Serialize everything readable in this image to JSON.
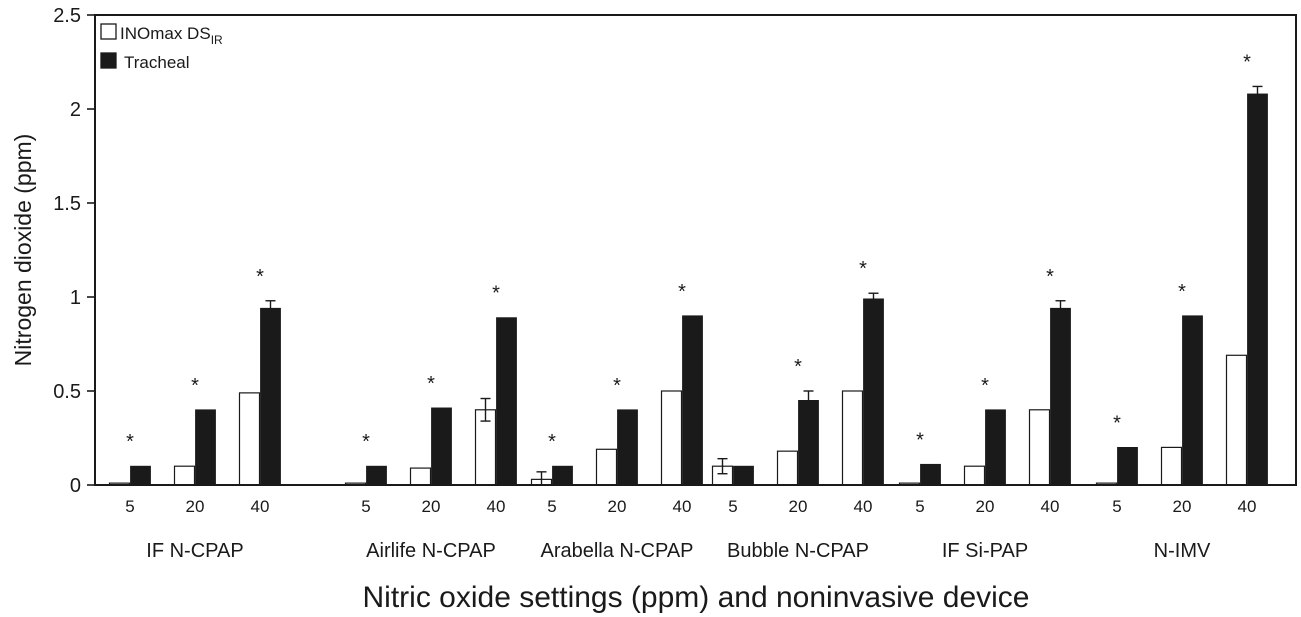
{
  "chart_data": {
    "type": "bar",
    "ylabel": "Nitrogen dioxide (ppm)",
    "xlabel": "Nitric oxide settings (ppm) and noninvasive device",
    "ylim": [
      0,
      2.5
    ],
    "yticks": [
      0,
      0.5,
      1,
      1.5,
      2,
      2.5
    ],
    "ytick_labels": [
      "0",
      "0.5",
      "1",
      "1.5",
      "2",
      "2.5"
    ],
    "grid": false,
    "legend_position": "top-left",
    "settings": [
      "5",
      "20",
      "40"
    ],
    "devices": [
      "IF N-CPAP",
      "Airlife N-CPAP",
      "Arabella N-CPAP",
      "Bubble N-CPAP",
      "IF Si-PAP",
      "N-IMV"
    ],
    "series": [
      {
        "name": "INOmax DS",
        "name_subscript": "IR",
        "fill": "#ffffff",
        "values": [
          0.01,
          0.1,
          0.49,
          0.01,
          0.09,
          0.4,
          0.03,
          0.19,
          0.5,
          0.1,
          0.18,
          0.5,
          0.01,
          0.1,
          0.4,
          0.01,
          0.2,
          0.69
        ],
        "errors": [
          null,
          null,
          null,
          null,
          null,
          0.06,
          0.04,
          null,
          null,
          0.04,
          null,
          null,
          null,
          null,
          null,
          null,
          null,
          null
        ]
      },
      {
        "name": "Tracheal",
        "fill": "#1a1a1a",
        "values": [
          0.1,
          0.4,
          0.94,
          0.1,
          0.41,
          0.89,
          0.1,
          0.4,
          0.9,
          0.1,
          0.45,
          0.99,
          0.11,
          0.4,
          0.94,
          0.2,
          0.9,
          2.08
        ],
        "errors": [
          null,
          null,
          0.04,
          null,
          null,
          null,
          null,
          null,
          null,
          null,
          0.05,
          0.03,
          null,
          null,
          0.04,
          null,
          null,
          0.04
        ]
      }
    ],
    "significance_marker": "*",
    "significant": [
      true,
      true,
      true,
      true,
      true,
      true,
      true,
      true,
      true,
      false,
      true,
      true,
      true,
      true,
      true,
      true,
      true,
      true
    ]
  }
}
